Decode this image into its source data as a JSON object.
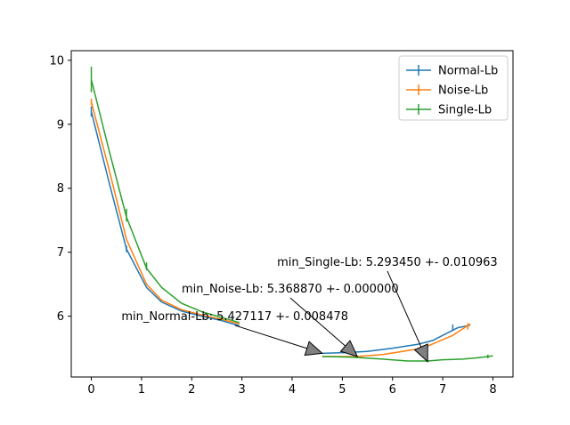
{
  "chart_data": {
    "type": "line",
    "xlim": [
      -0.4,
      8.4
    ],
    "ylim": [
      5.05,
      10.15
    ],
    "x_ticks": [
      0,
      1,
      2,
      3,
      4,
      5,
      6,
      7,
      8
    ],
    "y_ticks": [
      6,
      7,
      8,
      9,
      10
    ],
    "legend_placement": "top-right",
    "grid": false,
    "series": [
      {
        "name": "Normal-Lb",
        "color": "#1f77b4",
        "segments": [
          {
            "x": [
              0,
              0.35,
              0.7,
              1.1,
              1.4,
              1.8,
              2.2,
              2.6,
              2.95
            ],
            "y": [
              9.2,
              8.1,
              7.05,
              6.45,
              6.22,
              6.08,
              6.0,
              5.93,
              5.85
            ]
          },
          {
            "x": [
              4.6,
              5.0,
              5.5,
              6.0,
              6.5,
              6.8,
              7.0,
              7.3,
              7.55
            ],
            "y": [
              5.42,
              5.43,
              5.45,
              5.5,
              5.56,
              5.62,
              5.7,
              5.82,
              5.86
            ]
          }
        ],
        "error_bars": [
          {
            "x": 0,
            "y": 9.2,
            "err": 0.08
          },
          {
            "x": 0.7,
            "y": 7.05,
            "err": 0.05
          },
          {
            "x": 7.2,
            "y": 5.82,
            "err": 0.05
          }
        ]
      },
      {
        "name": "Noise-Lb",
        "color": "#ff7f0e",
        "segments": [
          {
            "x": [
              0,
              0.35,
              0.7,
              1.1,
              1.4,
              1.8,
              2.2,
              2.6,
              2.95
            ],
            "y": [
              9.35,
              8.3,
              7.2,
              6.5,
              6.25,
              6.1,
              6.02,
              5.95,
              5.88
            ]
          },
          {
            "x": [
              4.6,
              5.3,
              5.8,
              6.2,
              6.6,
              6.9,
              7.2,
              7.55
            ],
            "y": [
              5.37,
              5.37,
              5.4,
              5.45,
              5.5,
              5.6,
              5.7,
              5.88
            ]
          }
        ],
        "error_bars": [
          {
            "x": 0,
            "y": 9.35,
            "err": 0.05
          },
          {
            "x": 7.5,
            "y": 5.84,
            "err": 0.05
          }
        ]
      },
      {
        "name": "Single-Lb",
        "color": "#2ca02c",
        "segments": [
          {
            "x": [
              0,
              0.35,
              0.7,
              1.1,
              1.4,
              1.8,
              2.2,
              2.6,
              2.95
            ],
            "y": [
              9.7,
              8.6,
              7.55,
              6.75,
              6.45,
              6.2,
              6.07,
              5.98,
              5.9
            ]
          },
          {
            "x": [
              4.6,
              5.2,
              5.8,
              6.3,
              6.7,
              7.0,
              7.4,
              7.7,
              8.0
            ],
            "y": [
              5.37,
              5.36,
              5.33,
              5.3,
              5.3,
              5.32,
              5.33,
              5.35,
              5.38
            ]
          }
        ],
        "error_bars": [
          {
            "x": 0,
            "y": 9.7,
            "err": 0.2
          },
          {
            "x": 0.7,
            "y": 7.58,
            "err": 0.1
          },
          {
            "x": 1.1,
            "y": 6.78,
            "err": 0.06
          },
          {
            "x": 7.9,
            "y": 5.37,
            "err": 0.03
          }
        ]
      }
    ],
    "annotations": [
      {
        "text": "min_Normal-Lb: 5.427117 +- 0.008478",
        "text_at": [
          0.6,
          5.94
        ],
        "point": [
          4.6,
          5.42
        ]
      },
      {
        "text": "min_Noise-Lb: 5.368870 +- 0.000000",
        "text_at": [
          1.8,
          6.37
        ],
        "point": [
          5.3,
          5.37
        ]
      },
      {
        "text": "min_Single-Lb: 5.293450 +- 0.010963",
        "text_at": [
          3.7,
          6.79
        ],
        "point": [
          6.7,
          5.29
        ]
      }
    ]
  }
}
